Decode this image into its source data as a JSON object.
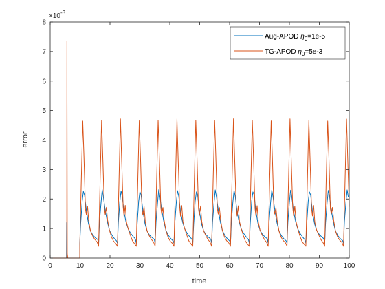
{
  "chart_data": {
    "type": "line",
    "xlabel": "time",
    "ylabel": "error",
    "exponent_label": "×10",
    "exponent_power": "-3",
    "xlim": [
      0,
      100
    ],
    "ylim": [
      0,
      8
    ],
    "xticks": [
      0,
      10,
      20,
      30,
      40,
      50,
      60,
      70,
      80,
      90,
      100
    ],
    "yticks": [
      0,
      1,
      2,
      3,
      4,
      5,
      6,
      7,
      8
    ],
    "grid": false,
    "legend_position": "top-right",
    "period": 6.3,
    "cycle_start": 9.9,
    "series": [
      {
        "name": "Aug-APOD η0=1e-5",
        "legend_parts": [
          "Aug-APOD ",
          "η",
          "0",
          "=1e-5"
        ],
        "color": "#0072BD",
        "initial_spike": {
          "x": 5.5,
          "y": 1.2
        },
        "cycle_shape": [
          [
            0,
            0.5
          ],
          [
            0.3,
            1.2
          ],
          [
            0.8,
            1.9
          ],
          [
            1.2,
            2.28
          ],
          [
            1.6,
            2.1
          ],
          [
            2.2,
            1.6
          ],
          [
            2.9,
            1.2
          ],
          [
            3.6,
            0.95
          ],
          [
            4.4,
            0.8
          ],
          [
            5.2,
            0.7
          ],
          [
            6.0,
            0.62
          ],
          [
            6.3,
            0.5
          ]
        ],
        "peak": 2.28,
        "trough": 0.5
      },
      {
        "name": "TG-APOD η0=5e-3",
        "legend_parts": [
          "TG-APOD ",
          "η",
          "0",
          "=5e-3"
        ],
        "color": "#D95319",
        "initial_spike": {
          "x": 5.6,
          "y": 7.35
        },
        "cycle_shape": [
          [
            0,
            0.4
          ],
          [
            0.5,
            2.6
          ],
          [
            1.0,
            4.68
          ],
          [
            1.4,
            3.4
          ],
          [
            1.9,
            1.7
          ],
          [
            2.2,
            1.45
          ],
          [
            2.6,
            1.75
          ],
          [
            3.0,
            1.25
          ],
          [
            3.6,
            0.95
          ],
          [
            4.3,
            0.75
          ],
          [
            5.0,
            0.6
          ],
          [
            5.8,
            0.5
          ],
          [
            6.3,
            0.4
          ]
        ],
        "peak": 4.68,
        "secondary_peak": 1.75,
        "trough": 0.4
      }
    ]
  }
}
